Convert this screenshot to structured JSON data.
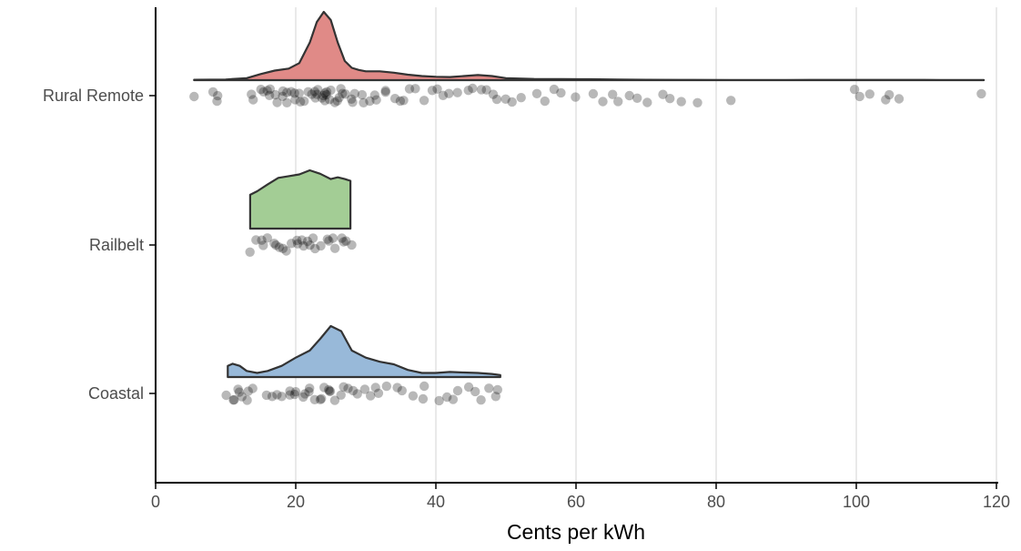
{
  "chart_data": {
    "type": "raincloud",
    "title": "",
    "xlabel": "Cents per kWh",
    "ylabel": "",
    "xlim": [
      0,
      120
    ],
    "x_ticks": [
      0,
      20,
      40,
      60,
      80,
      100,
      120
    ],
    "x_tick_labels": [
      "0",
      "20",
      "40",
      "60",
      "80",
      "100",
      "120"
    ],
    "grid": "vertical major lines",
    "legend": "none",
    "categories": [
      "Rural Remote",
      "Railbelt",
      "Coastal"
    ],
    "series": [
      {
        "name": "Rural Remote",
        "color": "#e08a87",
        "range": [
          5.5,
          118.2
        ],
        "density_peak": 24,
        "points": [
          5.5,
          8.5,
          8.9,
          9.1,
          13.6,
          14.1,
          14.9,
          15.4,
          15.8,
          16.2,
          16.6,
          17.0,
          17.4,
          17.8,
          18.2,
          18.6,
          19.0,
          19.4,
          19.8,
          20.2,
          20.6,
          21.0,
          21.4,
          21.8,
          22.2,
          22.6,
          23.0,
          23.2,
          23.4,
          23.6,
          23.8,
          24.0,
          24.2,
          24.4,
          24.6,
          24.8,
          25.0,
          25.3,
          25.6,
          26.0,
          26.4,
          26.8,
          27.3,
          27.8,
          28.3,
          28.8,
          29.4,
          30.0,
          30.6,
          31.2,
          31.8,
          32.5,
          33.2,
          34.0,
          34.8,
          35.6,
          36.5,
          37.4,
          38.3,
          39.2,
          40.2,
          41.2,
          42.2,
          43.3,
          44.4,
          45.5,
          46.4,
          47.3,
          48.2,
          49.1,
          50.0,
          51.0,
          52.0,
          54.6,
          55.9,
          57.2,
          58.1,
          60.3,
          62.5,
          63.8,
          65.2,
          66.3,
          67.5,
          68.4,
          70.2,
          72.1,
          73.4,
          74.8,
          77.3,
          82.0,
          99.8,
          100.1,
          101.8,
          104.0,
          104.7,
          105.8,
          118.2
        ],
        "density": [
          [
            5.5,
            0.005
          ],
          [
            10,
            0.01
          ],
          [
            13,
            0.03
          ],
          [
            15,
            0.09
          ],
          [
            17,
            0.14
          ],
          [
            19,
            0.17
          ],
          [
            20.5,
            0.25
          ],
          [
            22,
            0.55
          ],
          [
            23,
            0.85
          ],
          [
            24,
            1.0
          ],
          [
            25,
            0.88
          ],
          [
            26,
            0.55
          ],
          [
            27,
            0.28
          ],
          [
            28,
            0.18
          ],
          [
            29,
            0.15
          ],
          [
            30,
            0.13
          ],
          [
            32,
            0.13
          ],
          [
            34,
            0.11
          ],
          [
            36,
            0.08
          ],
          [
            38,
            0.06
          ],
          [
            40,
            0.05
          ],
          [
            42,
            0.045
          ],
          [
            44,
            0.06
          ],
          [
            46,
            0.075
          ],
          [
            48,
            0.06
          ],
          [
            50,
            0.03
          ],
          [
            54,
            0.018
          ],
          [
            58,
            0.015
          ],
          [
            62,
            0.013
          ],
          [
            66,
            0.01
          ],
          [
            70,
            0.005
          ],
          [
            75,
            0.004
          ],
          [
            82,
            0.003
          ],
          [
            90,
            0.002
          ],
          [
            100,
            0.004
          ],
          [
            105,
            0.004
          ],
          [
            112,
            0.002
          ],
          [
            118.2,
            0.002
          ]
        ]
      },
      {
        "name": "Railbelt",
        "color": "#a3cd95",
        "range": [
          13.5,
          27.8
        ],
        "density_peak": 22,
        "points": [
          13.5,
          14.2,
          15.0,
          15.6,
          16.1,
          16.8,
          17.3,
          17.9,
          18.4,
          18.8,
          19.3,
          19.9,
          20.4,
          20.8,
          21.2,
          21.7,
          22.1,
          22.6,
          23.1,
          23.6,
          24.2,
          24.8,
          25.4,
          25.9,
          26.3,
          26.8,
          27.3,
          27.8
        ],
        "density": [
          [
            13.5,
            0.58
          ],
          [
            14.5,
            0.64
          ],
          [
            16,
            0.76
          ],
          [
            17.5,
            0.87
          ],
          [
            19,
            0.9
          ],
          [
            20.5,
            0.93
          ],
          [
            22,
            1.0
          ],
          [
            23.5,
            0.94
          ],
          [
            25,
            0.85
          ],
          [
            26,
            0.88
          ],
          [
            27,
            0.85
          ],
          [
            27.8,
            0.82
          ]
        ]
      },
      {
        "name": "Coastal",
        "color": "#98b9d9",
        "range": [
          10.3,
          49.2
        ],
        "density_peak": 25,
        "points": [
          10.3,
          10.8,
          11.3,
          11.7,
          12.1,
          12.6,
          13.0,
          13.4,
          14.0,
          15.5,
          16.4,
          17.5,
          18.3,
          18.8,
          19.3,
          19.8,
          20.3,
          20.8,
          21.3,
          21.8,
          22.3,
          22.8,
          23.3,
          23.7,
          24.1,
          24.5,
          24.9,
          25.3,
          25.7,
          26.2,
          26.8,
          27.5,
          28.2,
          29.0,
          29.8,
          30.6,
          31.4,
          32.2,
          33.0,
          34.4,
          35.5,
          36.8,
          37.8,
          38.6,
          40.2,
          41.3,
          42.4,
          43.5,
          44.6,
          45.5,
          46.6,
          47.5,
          48.4,
          49.2
        ],
        "density": [
          [
            10.3,
            0.22
          ],
          [
            11,
            0.26
          ],
          [
            12,
            0.22
          ],
          [
            13,
            0.12
          ],
          [
            14.5,
            0.08
          ],
          [
            16,
            0.12
          ],
          [
            18,
            0.22
          ],
          [
            20,
            0.38
          ],
          [
            22,
            0.52
          ],
          [
            23.5,
            0.75
          ],
          [
            25,
            1.0
          ],
          [
            26.5,
            0.9
          ],
          [
            28,
            0.52
          ],
          [
            30,
            0.38
          ],
          [
            32,
            0.3
          ],
          [
            34,
            0.25
          ],
          [
            36,
            0.14
          ],
          [
            38,
            0.08
          ],
          [
            40,
            0.08
          ],
          [
            42,
            0.1
          ],
          [
            44,
            0.09
          ],
          [
            46,
            0.08
          ],
          [
            48,
            0.06
          ],
          [
            49.2,
            0.04
          ]
        ]
      }
    ]
  }
}
